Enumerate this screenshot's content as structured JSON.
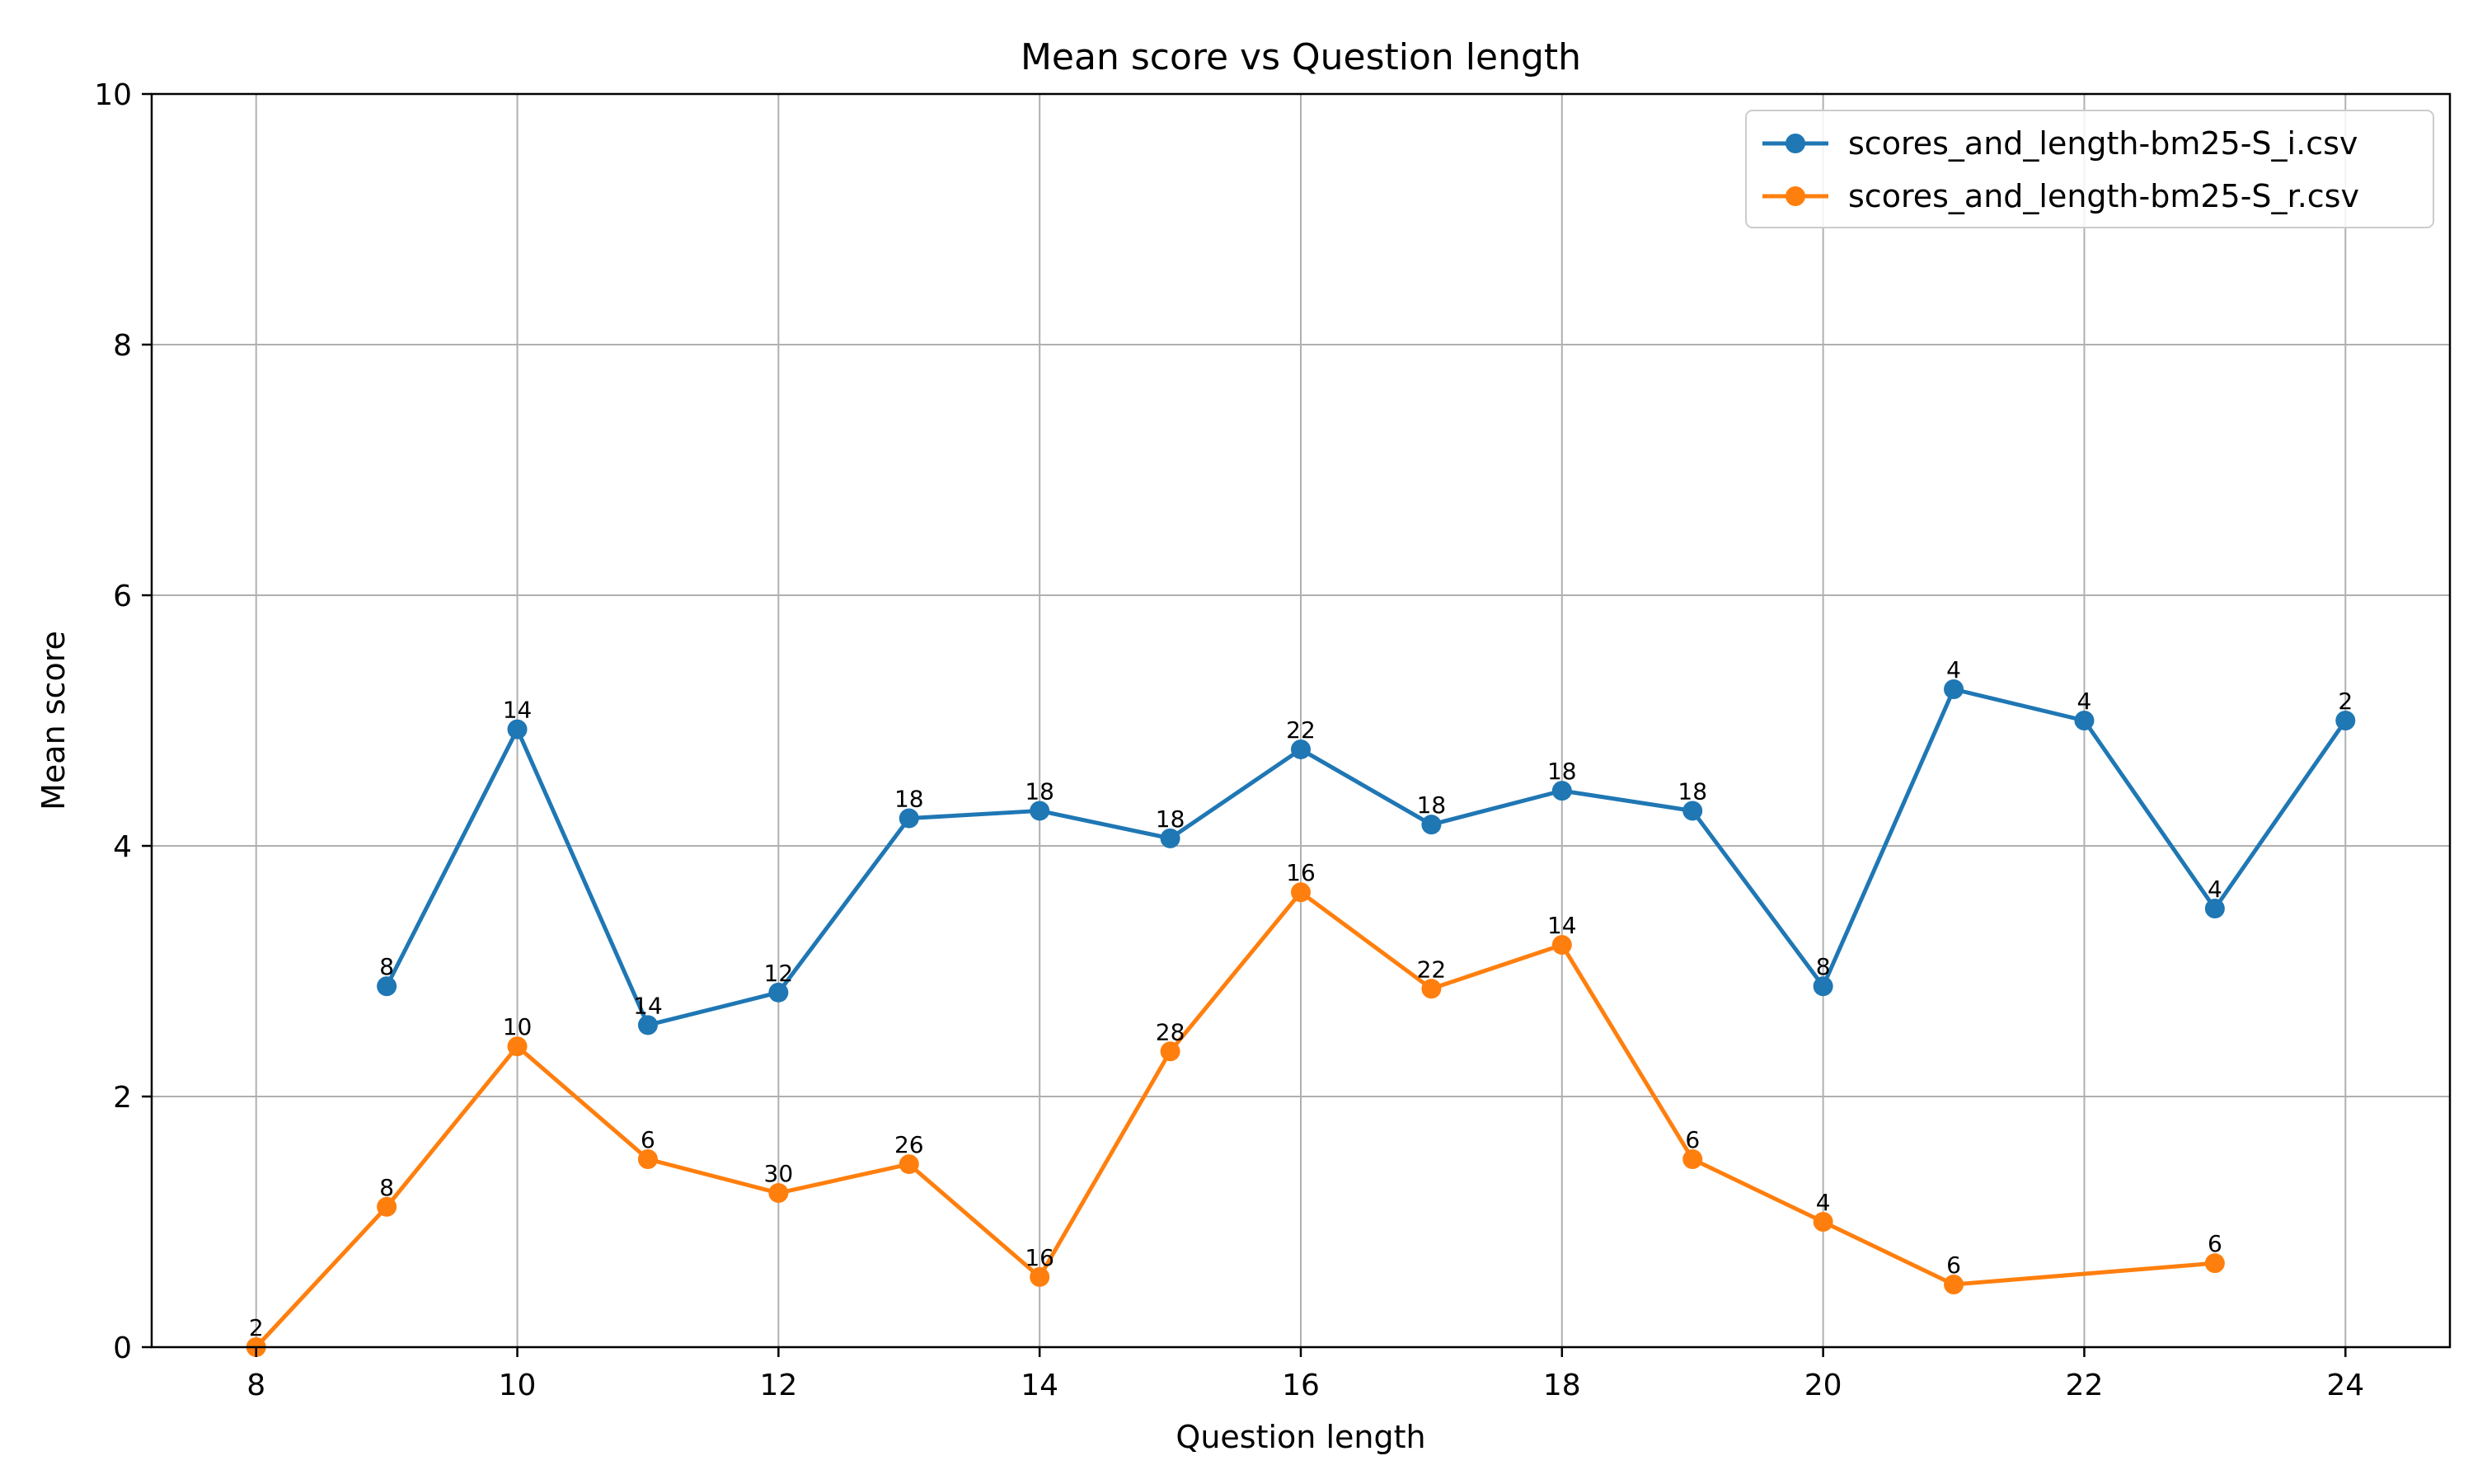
{
  "chart_data": {
    "type": "line",
    "title": "Mean score vs Question length",
    "xlabel": "Question length",
    "ylabel": "Mean score",
    "xlim": [
      7.2,
      24.8
    ],
    "ylim": [
      0,
      10
    ],
    "xticks": [
      8,
      10,
      12,
      14,
      16,
      18,
      20,
      22,
      24
    ],
    "yticks": [
      0,
      2,
      4,
      6,
      8,
      10
    ],
    "grid": true,
    "legend_position": "top-right",
    "series": [
      {
        "name": "scores_and_length-bm25-S_i.csv",
        "color": "#1f77b4",
        "x": [
          9,
          10,
          11,
          12,
          13,
          14,
          15,
          16,
          17,
          18,
          19,
          20,
          21,
          22,
          23,
          24
        ],
        "y": [
          2.88,
          4.93,
          2.57,
          2.83,
          4.22,
          4.28,
          4.06,
          4.77,
          4.17,
          4.44,
          4.28,
          2.88,
          5.25,
          5.0,
          3.5,
          5.0
        ],
        "labels": [
          "8",
          "14",
          "14",
          "12",
          "18",
          "18",
          "18",
          "22",
          "18",
          "18",
          "18",
          "8",
          "4",
          "4",
          "4",
          "2"
        ]
      },
      {
        "name": "scores_and_length-bm25-S_r.csv",
        "color": "#ff7f0e",
        "x": [
          8,
          9,
          10,
          11,
          12,
          13,
          14,
          15,
          16,
          17,
          18,
          19,
          20,
          21,
          23
        ],
        "y": [
          0.0,
          1.12,
          2.4,
          1.5,
          1.23,
          1.46,
          0.56,
          2.36,
          3.63,
          2.86,
          3.21,
          1.5,
          1.0,
          0.5,
          0.67
        ],
        "labels": [
          "2",
          "8",
          "10",
          "6",
          "30",
          "26",
          "16",
          "28",
          "16",
          "22",
          "14",
          "6",
          "4",
          "6",
          "6"
        ]
      }
    ]
  }
}
